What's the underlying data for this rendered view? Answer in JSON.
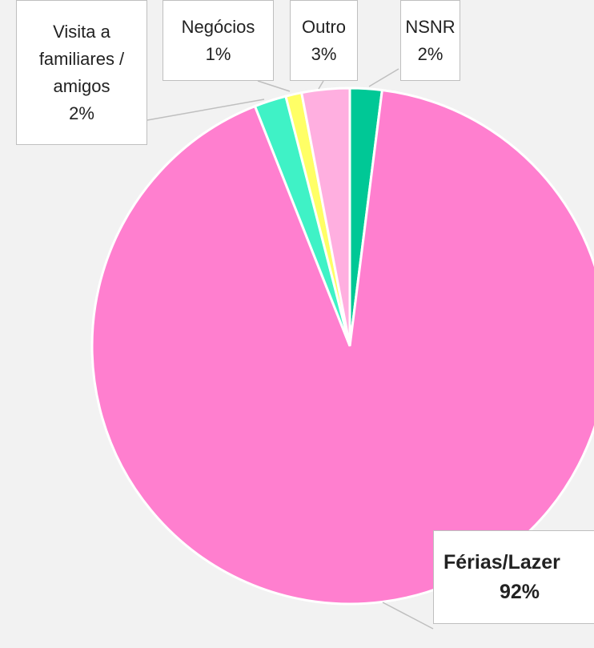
{
  "chart_data": {
    "type": "pie",
    "categories": [
      "NSNR",
      "Férias/Lazer",
      "Visita a familiares / amigos",
      "Negócios",
      "Outro"
    ],
    "values": [
      2,
      92,
      2,
      1,
      3
    ],
    "value_labels": [
      "2%",
      "92%",
      "2%",
      "1%",
      "3%"
    ],
    "colors": [
      "#00c896",
      "#ff7fcf",
      "#3ff2c6",
      "#ffff66",
      "#ffafe0"
    ],
    "bold_labels": [
      "Férias/Lazer"
    ]
  }
}
